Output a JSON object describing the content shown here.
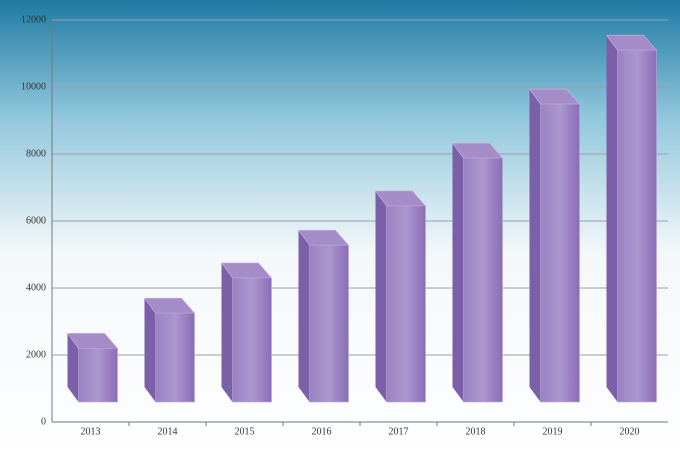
{
  "chart_data": {
    "type": "bar3d",
    "categories": [
      "2013",
      "2014",
      "2015",
      "2016",
      "2017",
      "2018",
      "2019",
      "2020"
    ],
    "values": [
      2200,
      3250,
      4300,
      5280,
      6450,
      7880,
      9490,
      11100
    ],
    "color": "#8f74b8",
    "ylim": [
      0,
      12000
    ],
    "yticks": [
      0,
      2000,
      4000,
      6000,
      8000,
      10000,
      12000
    ],
    "grid": true
  }
}
